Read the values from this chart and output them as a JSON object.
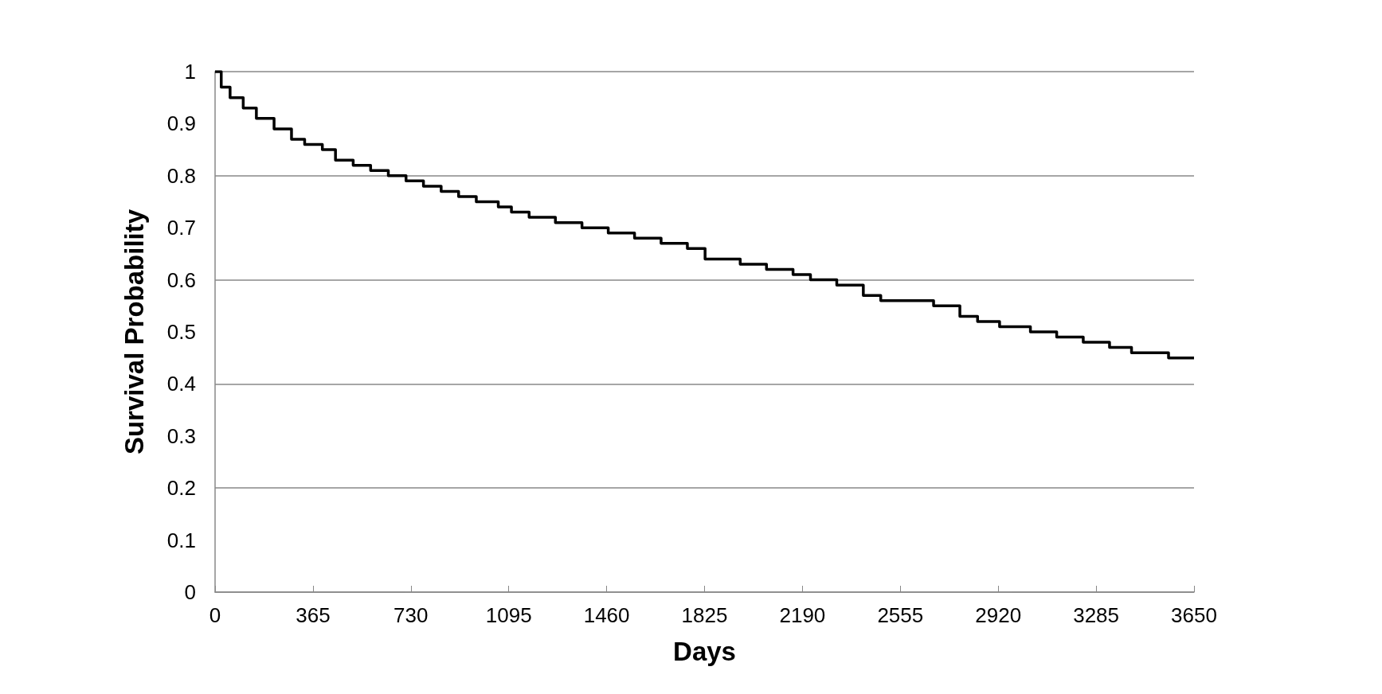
{
  "chart_data": {
    "type": "step",
    "xlabel": "Days",
    "ylabel": "Survival Probability",
    "x": [
      0,
      23,
      56,
      105,
      154,
      220,
      285,
      334,
      400,
      449,
      515,
      580,
      646,
      712,
      777,
      843,
      908,
      974,
      1056,
      1105,
      1171,
      1269,
      1368,
      1466,
      1564,
      1663,
      1761,
      1827,
      1892,
      1958,
      2056,
      2155,
      2220,
      2318,
      2417,
      2482,
      2581,
      2679,
      2777,
      2843,
      2925,
      3040,
      3138,
      3237,
      3335,
      3417,
      3555,
      3650
    ],
    "series": [
      {
        "color": "#000000",
        "values": [
          1.0,
          0.97,
          0.95,
          0.93,
          0.91,
          0.89,
          0.87,
          0.86,
          0.85,
          0.83,
          0.82,
          0.81,
          0.8,
          0.79,
          0.78,
          0.77,
          0.76,
          0.75,
          0.74,
          0.73,
          0.72,
          0.71,
          0.7,
          0.69,
          0.68,
          0.67,
          0.66,
          0.64,
          0.64,
          0.63,
          0.62,
          0.61,
          0.6,
          0.59,
          0.57,
          0.56,
          0.56,
          0.55,
          0.53,
          0.52,
          0.51,
          0.5,
          0.49,
          0.48,
          0.47,
          0.46,
          0.45,
          0.45
        ]
      }
    ],
    "xlim": [
      0,
      3650
    ],
    "xticks": [
      0,
      365,
      730,
      1095,
      1460,
      1825,
      2190,
      2555,
      2920,
      3285,
      3650
    ],
    "ylim": [
      0,
      1
    ],
    "yticks": [
      0,
      0.1,
      0.2,
      0.3,
      0.4,
      0.5,
      0.6,
      0.7,
      0.8,
      0.9,
      1
    ],
    "grid": "y",
    "marker": "none",
    "line_style": "solid"
  }
}
